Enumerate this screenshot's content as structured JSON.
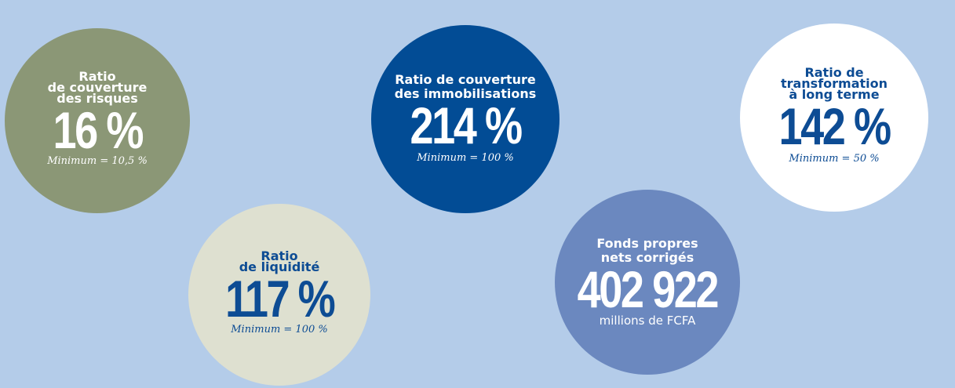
{
  "circles": [
    {
      "label": [
        "Ratio",
        "de couverture",
        "des risques"
      ],
      "value": "16 %",
      "note": "Minimum = 10,5 %"
    },
    {
      "label": [
        "Ratio",
        "de liquidité"
      ],
      "value": "117 %",
      "note": "Minimum = 100 %"
    },
    {
      "label": [
        "Ratio de couverture",
        "des immobilisations"
      ],
      "value": "214 %",
      "note": "Minimum = 100 %"
    },
    {
      "label": [
        "Fonds propres",
        "nets corrigés"
      ],
      "value": "402 922",
      "unit": "millions de FCFA"
    },
    {
      "label": [
        "Ratio de",
        "transformation",
        "à long terme"
      ],
      "value": "142 %",
      "note": "Minimum = 50 %"
    }
  ]
}
